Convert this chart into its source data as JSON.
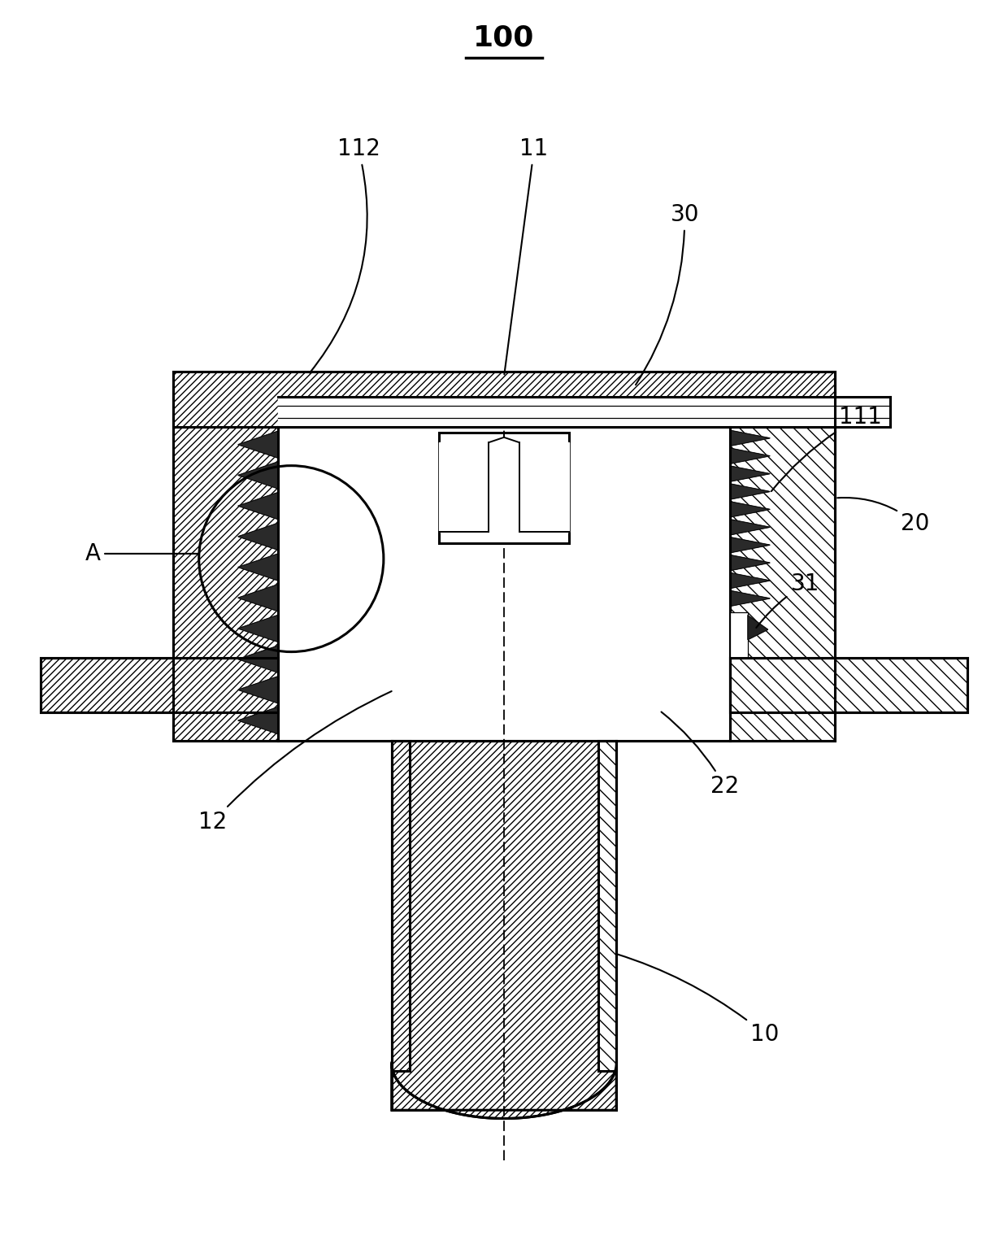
{
  "title": "100",
  "background_color": "#ffffff",
  "fig_width": 12.4,
  "fig_height": 15.36,
  "dpi": 100,
  "label_fontsize": 20,
  "title_fontsize": 26
}
